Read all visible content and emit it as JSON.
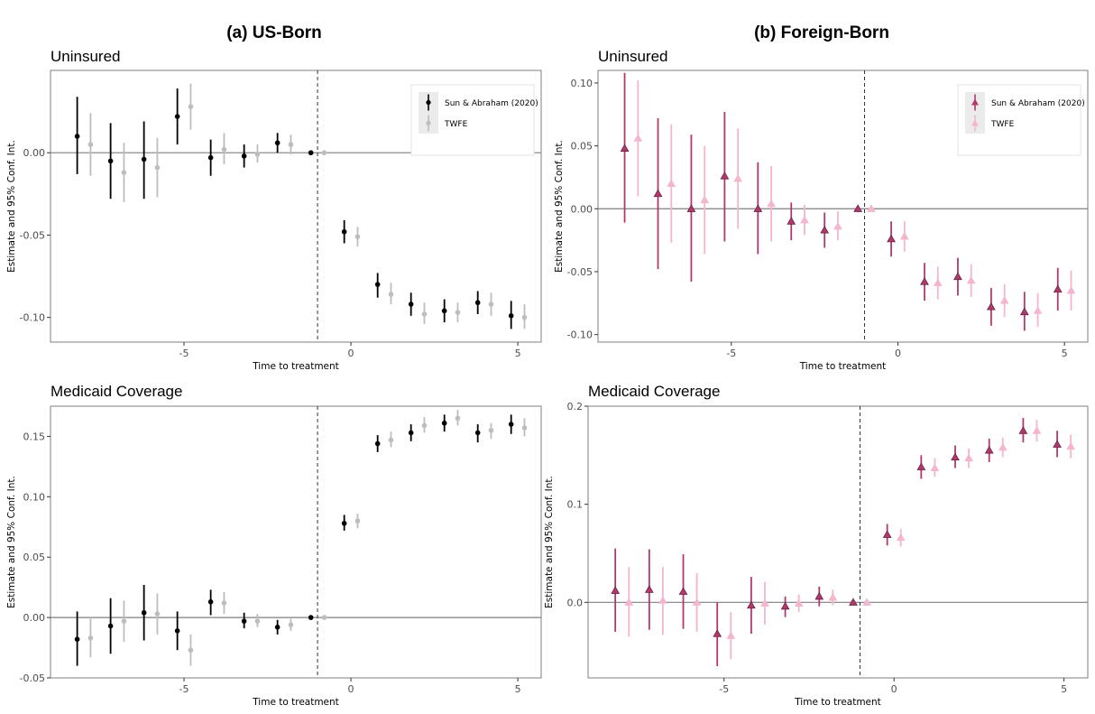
{
  "figure": {
    "left_title": "(a) US-Born",
    "right_title": "(b) Foreign-Born"
  },
  "colors": {
    "sa_us": "#000000",
    "twfe_us": "#bdbdbd",
    "sa_fb": "#b03a6e",
    "twfe_fb": "#f4b6cf",
    "zero_line": "#7f7f7f",
    "treat_line": "#333333",
    "legend_key_bg": "#ebebeb"
  },
  "chart_data": [
    {
      "id": "us-uninsured",
      "type": "scatter",
      "subtype": "event-study point-range",
      "title": "Uninsured",
      "xlabel": "Time to treatment",
      "ylabel": "Estimate and 95% Conf. Int.",
      "xlim": [
        -9,
        5.7
      ],
      "ylim": [
        -0.115,
        0.05
      ],
      "xticks": [
        -5,
        0,
        5
      ],
      "yticks": [
        -0.1,
        -0.05,
        0.0
      ],
      "ytick_labels": [
        "-0.10",
        "-0.05",
        "0.00"
      ],
      "treatment_line_x": -1,
      "legend": {
        "position": "top-right",
        "entries": [
          "Sun & Abraham (2020)",
          "TWFE"
        ]
      },
      "marker": "circle",
      "series": [
        {
          "name": "Sun & Abraham (2020)",
          "color": "#000000",
          "points": [
            {
              "x": -8,
              "y": 0.01,
              "lo": -0.013,
              "hi": 0.034
            },
            {
              "x": -7,
              "y": -0.005,
              "lo": -0.028,
              "hi": 0.018
            },
            {
              "x": -6,
              "y": -0.004,
              "lo": -0.028,
              "hi": 0.019
            },
            {
              "x": -5,
              "y": 0.022,
              "lo": 0.005,
              "hi": 0.039
            },
            {
              "x": -4,
              "y": -0.003,
              "lo": -0.014,
              "hi": 0.008
            },
            {
              "x": -3,
              "y": -0.002,
              "lo": -0.009,
              "hi": 0.005
            },
            {
              "x": -2,
              "y": 0.006,
              "lo": 0.0,
              "hi": 0.012
            },
            {
              "x": -1,
              "y": 0.0,
              "lo": 0.0,
              "hi": 0.0
            },
            {
              "x": 0,
              "y": -0.048,
              "lo": -0.055,
              "hi": -0.041
            },
            {
              "x": 1,
              "y": -0.08,
              "lo": -0.088,
              "hi": -0.073
            },
            {
              "x": 2,
              "y": -0.092,
              "lo": -0.099,
              "hi": -0.085
            },
            {
              "x": 3,
              "y": -0.096,
              "lo": -0.103,
              "hi": -0.089
            },
            {
              "x": 4,
              "y": -0.091,
              "lo": -0.098,
              "hi": -0.084
            },
            {
              "x": 5,
              "y": -0.099,
              "lo": -0.107,
              "hi": -0.09
            }
          ]
        },
        {
          "name": "TWFE",
          "color": "#bdbdbd",
          "points": [
            {
              "x": -8,
              "y": 0.005,
              "lo": -0.014,
              "hi": 0.024
            },
            {
              "x": -7,
              "y": -0.012,
              "lo": -0.03,
              "hi": 0.006
            },
            {
              "x": -6,
              "y": -0.009,
              "lo": -0.027,
              "hi": 0.009
            },
            {
              "x": -5,
              "y": 0.028,
              "lo": 0.014,
              "hi": 0.042
            },
            {
              "x": -4,
              "y": 0.002,
              "lo": -0.007,
              "hi": 0.012
            },
            {
              "x": -3,
              "y": -0.001,
              "lo": -0.006,
              "hi": 0.005
            },
            {
              "x": -2,
              "y": 0.005,
              "lo": -0.001,
              "hi": 0.011
            },
            {
              "x": -1,
              "y": 0.0,
              "lo": 0.0,
              "hi": 0.0
            },
            {
              "x": 0,
              "y": -0.051,
              "lo": -0.057,
              "hi": -0.045
            },
            {
              "x": 1,
              "y": -0.086,
              "lo": -0.092,
              "hi": -0.079
            },
            {
              "x": 2,
              "y": -0.098,
              "lo": -0.104,
              "hi": -0.091
            },
            {
              "x": 3,
              "y": -0.097,
              "lo": -0.103,
              "hi": -0.091
            },
            {
              "x": 4,
              "y": -0.092,
              "lo": -0.099,
              "hi": -0.085
            },
            {
              "x": 5,
              "y": -0.1,
              "lo": -0.107,
              "hi": -0.092
            }
          ]
        }
      ]
    },
    {
      "id": "fb-uninsured",
      "type": "scatter",
      "subtype": "event-study point-range",
      "title": "Uninsured",
      "xlabel": "Time to treatment",
      "ylabel": "Estimate and 95% Conf. Int.",
      "xlim": [
        -9,
        5.7
      ],
      "ylim": [
        -0.106,
        0.11
      ],
      "xticks": [
        -5,
        0,
        5
      ],
      "yticks": [
        -0.1,
        -0.05,
        0.0,
        0.05,
        0.1
      ],
      "ytick_labels": [
        "-0.10",
        "-0.05",
        "0.00",
        "0.05",
        "0.10"
      ],
      "treatment_line_x": -1,
      "legend": {
        "position": "top-right",
        "entries": [
          "Sun & Abraham (2020)",
          "TWFE"
        ]
      },
      "marker": "triangle",
      "series": [
        {
          "name": "Sun & Abraham (2020)",
          "color": "#b03a6e",
          "points": [
            {
              "x": -8,
              "y": 0.048,
              "lo": -0.011,
              "hi": 0.108
            },
            {
              "x": -7,
              "y": 0.012,
              "lo": -0.048,
              "hi": 0.072
            },
            {
              "x": -6,
              "y": 0.0,
              "lo": -0.058,
              "hi": 0.059
            },
            {
              "x": -5,
              "y": 0.026,
              "lo": -0.026,
              "hi": 0.077
            },
            {
              "x": -4,
              "y": 0.0,
              "lo": -0.036,
              "hi": 0.037
            },
            {
              "x": -3,
              "y": -0.01,
              "lo": -0.025,
              "hi": 0.005
            },
            {
              "x": -2,
              "y": -0.017,
              "lo": -0.031,
              "hi": -0.003
            },
            {
              "x": -1,
              "y": 0.0,
              "lo": 0.0,
              "hi": 0.0
            },
            {
              "x": 0,
              "y": -0.024,
              "lo": -0.038,
              "hi": -0.01
            },
            {
              "x": 1,
              "y": -0.058,
              "lo": -0.073,
              "hi": -0.043
            },
            {
              "x": 2,
              "y": -0.054,
              "lo": -0.069,
              "hi": -0.039
            },
            {
              "x": 3,
              "y": -0.078,
              "lo": -0.093,
              "hi": -0.063
            },
            {
              "x": 4,
              "y": -0.082,
              "lo": -0.097,
              "hi": -0.066
            },
            {
              "x": 5,
              "y": -0.064,
              "lo": -0.081,
              "hi": -0.047
            }
          ]
        },
        {
          "name": "TWFE",
          "color": "#f4b6cf",
          "points": [
            {
              "x": -8,
              "y": 0.056,
              "lo": 0.01,
              "hi": 0.102
            },
            {
              "x": -7,
              "y": 0.02,
              "lo": -0.027,
              "hi": 0.067
            },
            {
              "x": -6,
              "y": 0.007,
              "lo": -0.036,
              "hi": 0.05
            },
            {
              "x": -5,
              "y": 0.024,
              "lo": -0.016,
              "hi": 0.064
            },
            {
              "x": -4,
              "y": 0.004,
              "lo": -0.026,
              "hi": 0.034
            },
            {
              "x": -3,
              "y": -0.009,
              "lo": -0.021,
              "hi": 0.003
            },
            {
              "x": -2,
              "y": -0.014,
              "lo": -0.025,
              "hi": -0.002
            },
            {
              "x": -1,
              "y": 0.0,
              "lo": 0.0,
              "hi": 0.0
            },
            {
              "x": 0,
              "y": -0.022,
              "lo": -0.034,
              "hi": -0.01
            },
            {
              "x": 1,
              "y": -0.059,
              "lo": -0.072,
              "hi": -0.046
            },
            {
              "x": 2,
              "y": -0.057,
              "lo": -0.07,
              "hi": -0.044
            },
            {
              "x": 3,
              "y": -0.073,
              "lo": -0.086,
              "hi": -0.06
            },
            {
              "x": 4,
              "y": -0.081,
              "lo": -0.094,
              "hi": -0.067
            },
            {
              "x": 5,
              "y": -0.065,
              "lo": -0.081,
              "hi": -0.049
            }
          ]
        }
      ]
    },
    {
      "id": "us-medicaid",
      "type": "scatter",
      "subtype": "event-study point-range",
      "title": "Medicaid Coverage",
      "xlabel": "Time to treatment",
      "ylabel": "Estimate and 95% Conf. Int.",
      "xlim": [
        -9,
        5.7
      ],
      "ylim": [
        -0.05,
        0.175
      ],
      "xticks": [
        -5,
        0,
        5
      ],
      "yticks": [
        -0.05,
        0.0,
        0.05,
        0.1,
        0.15
      ],
      "ytick_labels": [
        "-0.05",
        "0.00",
        "0.05",
        "0.10",
        "0.15"
      ],
      "treatment_line_x": -1,
      "marker": "circle",
      "series": [
        {
          "name": "Sun & Abraham (2020)",
          "color": "#000000",
          "points": [
            {
              "x": -8,
              "y": -0.018,
              "lo": -0.04,
              "hi": 0.005
            },
            {
              "x": -7,
              "y": -0.007,
              "lo": -0.03,
              "hi": 0.016
            },
            {
              "x": -6,
              "y": 0.004,
              "lo": -0.019,
              "hi": 0.027
            },
            {
              "x": -5,
              "y": -0.011,
              "lo": -0.027,
              "hi": 0.005
            },
            {
              "x": -4,
              "y": 0.013,
              "lo": 0.002,
              "hi": 0.023
            },
            {
              "x": -3,
              "y": -0.003,
              "lo": -0.009,
              "hi": 0.004
            },
            {
              "x": -2,
              "y": -0.008,
              "lo": -0.014,
              "hi": -0.002
            },
            {
              "x": -1,
              "y": 0.0,
              "lo": 0.0,
              "hi": 0.0
            },
            {
              "x": 0,
              "y": 0.078,
              "lo": 0.072,
              "hi": 0.085
            },
            {
              "x": 1,
              "y": 0.144,
              "lo": 0.137,
              "hi": 0.151
            },
            {
              "x": 2,
              "y": 0.153,
              "lo": 0.146,
              "hi": 0.16
            },
            {
              "x": 3,
              "y": 0.161,
              "lo": 0.154,
              "hi": 0.168
            },
            {
              "x": 4,
              "y": 0.153,
              "lo": 0.145,
              "hi": 0.16
            },
            {
              "x": 5,
              "y": 0.16,
              "lo": 0.152,
              "hi": 0.168
            }
          ]
        },
        {
          "name": "TWFE",
          "color": "#bdbdbd",
          "points": [
            {
              "x": -8,
              "y": -0.017,
              "lo": -0.033,
              "hi": 0.0
            },
            {
              "x": -7,
              "y": -0.003,
              "lo": -0.02,
              "hi": 0.014
            },
            {
              "x": -6,
              "y": 0.003,
              "lo": -0.014,
              "hi": 0.02
            },
            {
              "x": -5,
              "y": -0.027,
              "lo": -0.04,
              "hi": -0.014
            },
            {
              "x": -4,
              "y": 0.012,
              "lo": 0.003,
              "hi": 0.021
            },
            {
              "x": -3,
              "y": -0.003,
              "lo": -0.008,
              "hi": 0.003
            },
            {
              "x": -2,
              "y": -0.006,
              "lo": -0.011,
              "hi": -0.001
            },
            {
              "x": -1,
              "y": 0.0,
              "lo": 0.0,
              "hi": 0.0
            },
            {
              "x": 0,
              "y": 0.08,
              "lo": 0.074,
              "hi": 0.086
            },
            {
              "x": 1,
              "y": 0.147,
              "lo": 0.141,
              "hi": 0.154
            },
            {
              "x": 2,
              "y": 0.159,
              "lo": 0.153,
              "hi": 0.166
            },
            {
              "x": 3,
              "y": 0.165,
              "lo": 0.159,
              "hi": 0.172
            },
            {
              "x": 4,
              "y": 0.155,
              "lo": 0.148,
              "hi": 0.161
            },
            {
              "x": 5,
              "y": 0.157,
              "lo": 0.15,
              "hi": 0.165
            }
          ]
        }
      ]
    },
    {
      "id": "fb-medicaid",
      "type": "scatter",
      "subtype": "event-study point-range",
      "title": "Medicaid Coverage",
      "xlabel": "Time to treatment",
      "ylabel": "Estimate and 95% Conf. Int.",
      "xlim": [
        -9,
        5.7
      ],
      "ylim": [
        -0.077,
        0.2
      ],
      "xticks": [
        -5,
        0,
        5
      ],
      "yticks": [
        0.0,
        0.1,
        0.2
      ],
      "ytick_labels": [
        "0.0",
        "0.1",
        "0.2"
      ],
      "treatment_line_x": -1,
      "marker": "triangle",
      "series": [
        {
          "name": "Sun & Abraham (2020)",
          "color": "#b03a6e",
          "points": [
            {
              "x": -8,
              "y": 0.012,
              "lo": -0.03,
              "hi": 0.055
            },
            {
              "x": -7,
              "y": 0.013,
              "lo": -0.028,
              "hi": 0.054
            },
            {
              "x": -6,
              "y": 0.011,
              "lo": -0.027,
              "hi": 0.049
            },
            {
              "x": -5,
              "y": -0.032,
              "lo": -0.065,
              "hi": 0.0
            },
            {
              "x": -4,
              "y": -0.003,
              "lo": -0.032,
              "hi": 0.026
            },
            {
              "x": -3,
              "y": -0.004,
              "lo": -0.015,
              "hi": 0.006
            },
            {
              "x": -2,
              "y": 0.006,
              "lo": -0.004,
              "hi": 0.016
            },
            {
              "x": -1,
              "y": 0.0,
              "lo": 0.0,
              "hi": 0.0
            },
            {
              "x": 0,
              "y": 0.069,
              "lo": 0.058,
              "hi": 0.08
            },
            {
              "x": 1,
              "y": 0.138,
              "lo": 0.126,
              "hi": 0.15
            },
            {
              "x": 2,
              "y": 0.148,
              "lo": 0.137,
              "hi": 0.16
            },
            {
              "x": 3,
              "y": 0.155,
              "lo": 0.143,
              "hi": 0.167
            },
            {
              "x": 4,
              "y": 0.175,
              "lo": 0.163,
              "hi": 0.188
            },
            {
              "x": 5,
              "y": 0.161,
              "lo": 0.148,
              "hi": 0.175
            }
          ]
        },
        {
          "name": "TWFE",
          "color": "#f4b6cf",
          "points": [
            {
              "x": -8,
              "y": 0.0,
              "lo": -0.035,
              "hi": 0.036
            },
            {
              "x": -7,
              "y": 0.002,
              "lo": -0.033,
              "hi": 0.036
            },
            {
              "x": -6,
              "y": 0.0,
              "lo": -0.03,
              "hi": 0.03
            },
            {
              "x": -5,
              "y": -0.034,
              "lo": -0.058,
              "hi": -0.01
            },
            {
              "x": -4,
              "y": -0.001,
              "lo": -0.023,
              "hi": 0.021
            },
            {
              "x": -3,
              "y": -0.001,
              "lo": -0.01,
              "hi": 0.008
            },
            {
              "x": -2,
              "y": 0.005,
              "lo": -0.003,
              "hi": 0.013
            },
            {
              "x": -1,
              "y": 0.0,
              "lo": 0.0,
              "hi": 0.0
            },
            {
              "x": 0,
              "y": 0.066,
              "lo": 0.057,
              "hi": 0.075
            },
            {
              "x": 1,
              "y": 0.137,
              "lo": 0.128,
              "hi": 0.147
            },
            {
              "x": 2,
              "y": 0.147,
              "lo": 0.137,
              "hi": 0.157
            },
            {
              "x": 3,
              "y": 0.158,
              "lo": 0.148,
              "hi": 0.168
            },
            {
              "x": 4,
              "y": 0.175,
              "lo": 0.164,
              "hi": 0.186
            },
            {
              "x": 5,
              "y": 0.159,
              "lo": 0.147,
              "hi": 0.171
            }
          ]
        }
      ]
    }
  ]
}
